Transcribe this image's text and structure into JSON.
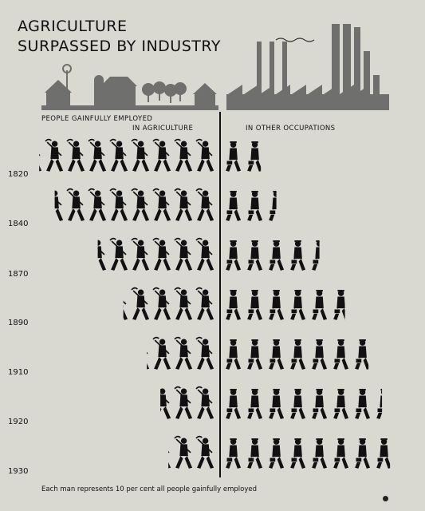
{
  "page": {
    "title_line1": "AGRICULTURE",
    "title_line2": "SURPASSED BY INDUSTRY",
    "header_people": "PEOPLE GAINFULLY EMPLOYED",
    "header_agriculture": "IN AGRICULTURE",
    "header_other": "IN OTHER OCCUPATIONS",
    "footnote": "Each man represents 10 per cent all people gainfully employed"
  },
  "chart_data": {
    "type": "pictograph",
    "title": "AGRICULTURE SURPASSED BY INDUSTRY",
    "unit_note": "Each man represents 10 per cent all people gainfully employed",
    "categories": [
      "1820",
      "1840",
      "1870",
      "1890",
      "1910",
      "1920",
      "1930"
    ],
    "series": [
      {
        "name": "IN AGRICULTURE",
        "values": [
          8.2,
          7.5,
          5.5,
          4.3,
          3.2,
          2.6,
          2.2
        ]
      },
      {
        "name": "IN OTHER OCCUPATIONS",
        "values": [
          1.8,
          2.5,
          4.5,
          5.7,
          6.8,
          7.4,
          7.8
        ]
      }
    ],
    "colors": {
      "figure": "#111111",
      "background": "#d9d8d1",
      "illustration": "#6f6f6d"
    }
  }
}
